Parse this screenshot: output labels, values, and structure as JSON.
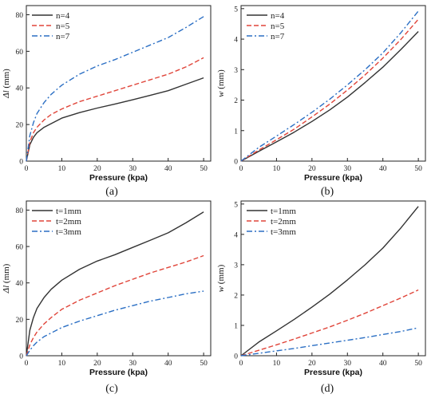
{
  "colors": {
    "series1": "#333333",
    "series2": "#e0453a",
    "series3": "#2b6fc4",
    "axis": "#222222"
  },
  "chart_data": [
    {
      "type": "line",
      "caption": "(a)",
      "xlabel": "Pressure (kpa)",
      "ylabel_italic": "Δl",
      "ylabel_rest": " (mm)",
      "xlim": [
        0,
        52
      ],
      "ylim": [
        0,
        85
      ],
      "xticks": [
        0,
        10,
        20,
        30,
        40,
        50
      ],
      "yticks": [
        0,
        20,
        40,
        60,
        80
      ],
      "legend_position": "top-left",
      "series": [
        {
          "name": "n=4",
          "style": "solid",
          "x": [
            0,
            1,
            2,
            3,
            5,
            7,
            10,
            15,
            20,
            25,
            30,
            35,
            40,
            45,
            50
          ],
          "y": [
            0,
            9,
            13,
            15.5,
            18.5,
            20.5,
            23.5,
            26.5,
            29,
            31.2,
            33.5,
            36,
            38.5,
            42,
            45.5
          ]
        },
        {
          "name": "n=5",
          "style": "dashed",
          "x": [
            0,
            1,
            2,
            3,
            5,
            7,
            10,
            15,
            20,
            25,
            30,
            35,
            40,
            45,
            50
          ],
          "y": [
            0,
            10.5,
            15.5,
            18.5,
            22.5,
            25.5,
            28.5,
            32.5,
            35.5,
            38.5,
            41.5,
            44.5,
            47.5,
            51.5,
            56.5
          ]
        },
        {
          "name": "n=7",
          "style": "dashdot",
          "x": [
            0,
            1,
            2,
            3,
            5,
            7,
            10,
            15,
            20,
            25,
            30,
            35,
            40,
            45,
            50
          ],
          "y": [
            0,
            14,
            21,
            26,
            32,
            36.5,
            41.5,
            47.5,
            52,
            55.5,
            59.5,
            63.5,
            67.5,
            73,
            79
          ]
        }
      ]
    },
    {
      "type": "line",
      "caption": "(b)",
      "xlabel": "Pressure (kpa)",
      "ylabel_italic": "w",
      "ylabel_rest": " (mm)",
      "xlim": [
        0,
        52
      ],
      "ylim": [
        0,
        5.1
      ],
      "xticks": [
        0,
        10,
        20,
        30,
        40,
        50
      ],
      "yticks": [
        0,
        1,
        2,
        3,
        4,
        5
      ],
      "legend_position": "top-left",
      "series": [
        {
          "name": "n=4",
          "style": "solid",
          "x": [
            0,
            5,
            10,
            15,
            20,
            25,
            30,
            35,
            40,
            45,
            50
          ],
          "y": [
            0,
            0.32,
            0.63,
            0.95,
            1.3,
            1.68,
            2.1,
            2.58,
            3.08,
            3.65,
            4.25
          ]
        },
        {
          "name": "n=5",
          "style": "dashed",
          "x": [
            0,
            5,
            10,
            15,
            20,
            25,
            30,
            35,
            40,
            45,
            50
          ],
          "y": [
            0,
            0.36,
            0.7,
            1.05,
            1.45,
            1.87,
            2.33,
            2.83,
            3.38,
            3.98,
            4.65
          ]
        },
        {
          "name": "n=7",
          "style": "dashdot",
          "x": [
            0,
            5,
            10,
            15,
            20,
            25,
            30,
            35,
            40,
            45,
            50
          ],
          "y": [
            0,
            0.45,
            0.82,
            1.2,
            1.6,
            2.03,
            2.5,
            3.0,
            3.55,
            4.2,
            4.92
          ]
        }
      ]
    },
    {
      "type": "line",
      "caption": "(c)",
      "xlabel": "Pressure (kpa)",
      "ylabel_italic": "Δl",
      "ylabel_rest": " (mm)",
      "xlim": [
        0,
        52
      ],
      "ylim": [
        0,
        85
      ],
      "xticks": [
        0,
        10,
        20,
        30,
        40,
        50
      ],
      "yticks": [
        0,
        20,
        40,
        60,
        80
      ],
      "legend_position": "top-left",
      "series": [
        {
          "name": "t=1mm",
          "style": "solid",
          "x": [
            0,
            1,
            2,
            3,
            5,
            7,
            10,
            15,
            20,
            25,
            30,
            35,
            40,
            45,
            50
          ],
          "y": [
            0,
            14,
            21,
            26,
            32,
            36.5,
            41.5,
            47.5,
            52,
            55.5,
            59.5,
            63.5,
            67.5,
            73,
            79
          ]
        },
        {
          "name": "t=2mm",
          "style": "dashed",
          "x": [
            0,
            1,
            2,
            3,
            5,
            7,
            10,
            15,
            20,
            25,
            30,
            35,
            40,
            45,
            50
          ],
          "y": [
            0,
            6,
            10,
            13,
            17.5,
            21,
            25.5,
            30.5,
            34.5,
            38.5,
            42,
            45.5,
            48.5,
            51.5,
            55
          ]
        },
        {
          "name": "t=3mm",
          "style": "dashdot",
          "x": [
            0,
            1,
            2,
            3,
            5,
            7,
            10,
            15,
            20,
            25,
            30,
            35,
            40,
            45,
            50
          ],
          "y": [
            0,
            3,
            5.5,
            7.5,
            10.5,
            12.5,
            15.5,
            19,
            22,
            25,
            27.5,
            30,
            32,
            34,
            35.5
          ]
        }
      ]
    },
    {
      "type": "line",
      "caption": "(d)",
      "xlabel": "Pressure (kpa)",
      "ylabel_italic": "w",
      "ylabel_rest": " (mm)",
      "xlim": [
        0,
        52
      ],
      "ylim": [
        0,
        5.1
      ],
      "xticks": [
        0,
        10,
        20,
        30,
        40,
        50
      ],
      "yticks": [
        0,
        1,
        2,
        3,
        4,
        5
      ],
      "legend_position": "top-left",
      "series": [
        {
          "name": "t=1mm",
          "style": "solid",
          "x": [
            0,
            5,
            10,
            15,
            20,
            25,
            30,
            35,
            40,
            45,
            50
          ],
          "y": [
            0,
            0.45,
            0.82,
            1.2,
            1.6,
            2.03,
            2.5,
            3.0,
            3.55,
            4.2,
            4.92
          ]
        },
        {
          "name": "t=2mm",
          "style": "dashed",
          "x": [
            0,
            5,
            10,
            15,
            20,
            25,
            30,
            35,
            40,
            45,
            50
          ],
          "y": [
            0,
            0.18,
            0.36,
            0.55,
            0.75,
            0.95,
            1.17,
            1.4,
            1.65,
            1.9,
            2.17
          ]
        },
        {
          "name": "t=3mm",
          "style": "dashdot",
          "x": [
            0,
            5,
            10,
            15,
            20,
            25,
            30,
            35,
            40,
            45,
            50
          ],
          "y": [
            0,
            0.08,
            0.16,
            0.24,
            0.33,
            0.42,
            0.51,
            0.6,
            0.7,
            0.8,
            0.92
          ]
        }
      ]
    }
  ]
}
